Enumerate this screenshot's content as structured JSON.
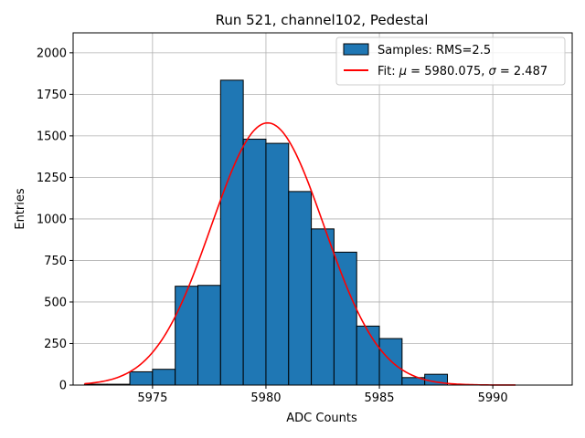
{
  "chart_data": {
    "type": "bar",
    "title": "Run 521, channel102, Pedestal",
    "xlabel": "ADC Counts",
    "ylabel": "Entries",
    "xlim": [
      5971.5,
      5993.5
    ],
    "ylim": [
      0,
      2120
    ],
    "xticks": [
      5975,
      5980,
      5985,
      5990
    ],
    "xtick_labels": [
      "5975",
      "5980",
      "5985",
      "5990"
    ],
    "yticks": [
      0,
      250,
      500,
      750,
      1000,
      1250,
      1500,
      1750,
      2000
    ],
    "ytick_labels": [
      "0",
      "250",
      "500",
      "750",
      "1000",
      "1250",
      "1500",
      "1750",
      "2000"
    ],
    "grid": true,
    "legend_position": "top-right",
    "series": [
      {
        "name": "Samples: RMS=2.5",
        "type": "histogram",
        "color": "#1f77b4",
        "bin_width": 1,
        "bins": [
          {
            "left": 5972,
            "value": 5
          },
          {
            "left": 5973,
            "value": 5
          },
          {
            "left": 5974,
            "value": 80
          },
          {
            "left": 5975,
            "value": 95
          },
          {
            "left": 5976,
            "value": 595
          },
          {
            "left": 5977,
            "value": 600
          },
          {
            "left": 5978,
            "value": 1835
          },
          {
            "left": 5979,
            "value": 1480
          },
          {
            "left": 5980,
            "value": 1455
          },
          {
            "left": 5981,
            "value": 1165
          },
          {
            "left": 5982,
            "value": 940
          },
          {
            "left": 5983,
            "value": 800
          },
          {
            "left": 5984,
            "value": 355
          },
          {
            "left": 5985,
            "value": 280
          },
          {
            "left": 5986,
            "value": 45
          },
          {
            "left": 5987,
            "value": 65
          },
          {
            "left": 5988,
            "value": 0
          },
          {
            "left": 5989,
            "value": 0
          },
          {
            "left": 5990,
            "value": 0
          },
          {
            "left": 5991,
            "value": 0
          },
          {
            "left": 5992,
            "value": 0
          }
        ]
      },
      {
        "name_prefix": "Fit: ",
        "mu_symbol": "μ",
        "mu_text": " = 5980.075, ",
        "sigma_symbol": "σ",
        "sigma_text": " = 2.487",
        "type": "line",
        "color": "#ff0000",
        "mu": 5980.075,
        "sigma": 2.487,
        "amplitude": 1578,
        "x_range": [
          5972,
          5991
        ]
      }
    ]
  }
}
